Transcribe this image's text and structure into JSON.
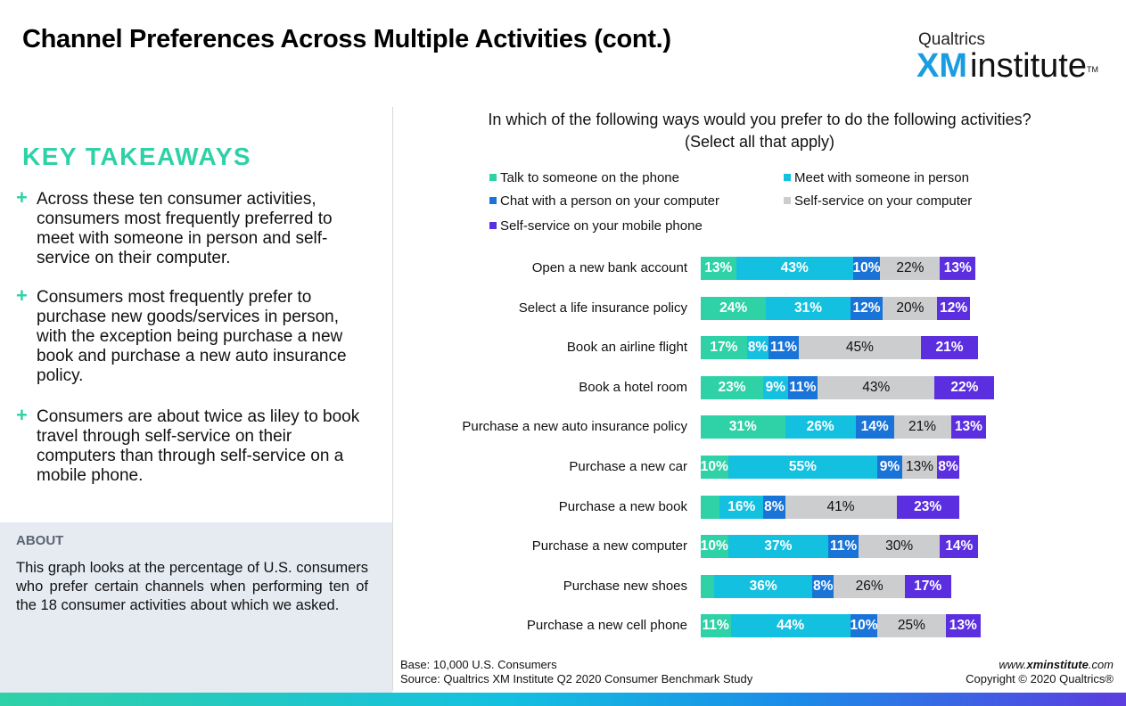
{
  "title": "Channel Preferences Across Multiple Activities (cont.)",
  "logo": {
    "top": "Qualtrics",
    "xm": "XM",
    "institute": "institute",
    "tm": "TM"
  },
  "takeaways": {
    "heading": "KEY TAKEAWAYS",
    "items": [
      "Across these ten consumer activities, consumers most frequently preferred to meet with someone in person and self-service on their computer.",
      "Consumers most frequently prefer to purchase new goods/services in person, with the exception being purchase a new book and purchase a new auto insurance policy.",
      "Consumers are about twice as liley to book travel through self-service on their computers than through self-service on a mobile phone."
    ]
  },
  "about": {
    "heading": "ABOUT",
    "text": "This graph looks at the percentage of U.S. consumers who prefer certain channels when performing ten of the 18 consumer activities about which we asked."
  },
  "footer": {
    "base": "Base: 10,000 U.S. Consumers",
    "source": "Source: Qualtrics XM Institute Q2 2020 Consumer Benchmark Study",
    "url_prefix": "www.",
    "url_bold": "xminstitute",
    "url_suffix": ".com",
    "copyright": "Copyright © 2020 Qualtrics®"
  },
  "colors": {
    "phone": "#2fd1a7",
    "in_person": "#14c0e0",
    "chat": "#1a74d8",
    "self_computer": "#cccdcf",
    "self_mobile": "#5b2ee0"
  },
  "chart_data": {
    "type": "bar",
    "orientation": "horizontal",
    "stacked": true,
    "title": "In which of the following ways would you prefer to do the following activities?",
    "subtitle": "(Select all that apply)",
    "legend_position": "top",
    "categories": [
      "Open a new bank account",
      "Select a life insurance policy",
      "Book an airline flight",
      "Book a hotel room",
      "Purchase a new auto insurance policy",
      "Purchase a new car",
      "Purchase a new book",
      "Purchase a new computer",
      "Purchase new shoes",
      "Purchase a new cell phone"
    ],
    "series": [
      {
        "name": "Talk to someone on the phone",
        "color_key": "phone",
        "values": [
          13,
          24,
          17,
          23,
          31,
          10,
          7,
          10,
          5,
          11
        ],
        "labels": [
          "13%",
          "24%",
          "17%",
          "23%",
          "31%",
          "10%",
          "",
          "10%",
          "",
          "11%"
        ]
      },
      {
        "name": "Meet with someone in person",
        "color_key": "in_person",
        "values": [
          43,
          31,
          8,
          9,
          26,
          55,
          16,
          37,
          36,
          44
        ],
        "labels": [
          "43%",
          "31%",
          "8%",
          "9%",
          "26%",
          "55%",
          "16%",
          "37%",
          "36%",
          "44%"
        ]
      },
      {
        "name": "Chat with a person on your computer",
        "color_key": "chat",
        "values": [
          10,
          12,
          11,
          11,
          14,
          9,
          8,
          11,
          8,
          10
        ],
        "labels": [
          "10%",
          "12%",
          "11%",
          "11%",
          "14%",
          "9%",
          "8%",
          "11%",
          "8%",
          "10%"
        ]
      },
      {
        "name": "Self-service on your computer",
        "color_key": "self_computer",
        "values": [
          22,
          20,
          45,
          43,
          21,
          13,
          41,
          30,
          26,
          25
        ],
        "labels": [
          "22%",
          "20%",
          "45%",
          "43%",
          "21%",
          "13%",
          "41%",
          "30%",
          "26%",
          "25%"
        ]
      },
      {
        "name": "Self-service on your mobile phone",
        "color_key": "self_mobile",
        "values": [
          13,
          12,
          21,
          22,
          13,
          8,
          23,
          14,
          17,
          13
        ],
        "labels": [
          "13%",
          "12%",
          "21%",
          "22%",
          "13%",
          "8%",
          "23%",
          "14%",
          "17%",
          "13%"
        ]
      }
    ],
    "legend_order": [
      0,
      1,
      2,
      3,
      4
    ]
  }
}
